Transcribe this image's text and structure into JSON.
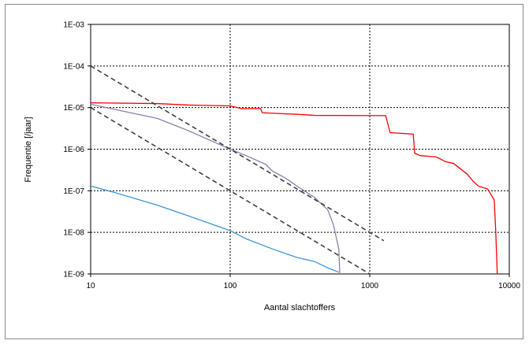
{
  "chart_data": {
    "type": "line",
    "title": "",
    "xlabel": "Aantal slachtoffers",
    "ylabel": "Frequentie [/jaar]",
    "x_scale": "log",
    "y_scale": "log",
    "xlim": [
      10,
      10000
    ],
    "ylim": [
      1e-09,
      0.001
    ],
    "x_ticks": [
      10,
      100,
      1000,
      10000
    ],
    "x_tick_labels": [
      "10",
      "100",
      "1000",
      "10000"
    ],
    "y_ticks": [
      0.001,
      0.0001,
      1e-05,
      1e-06,
      1e-07,
      1e-08,
      1e-09
    ],
    "y_tick_labels": [
      "1E-03",
      "1E-04",
      "1E-05",
      "1E-06",
      "1E-07",
      "1E-08",
      "1E-09"
    ],
    "grid": true,
    "legend": "none",
    "series": [
      {
        "color": "#ff0000",
        "style": "solid",
        "points": [
          [
            10,
            1.3e-05
          ],
          [
            30,
            1.25e-05
          ],
          [
            50,
            1.15e-05
          ],
          [
            100,
            1.1e-05
          ],
          [
            120,
            9.5e-06
          ],
          [
            165,
            9.5e-06
          ],
          [
            170,
            7.5e-06
          ],
          [
            300,
            6.9e-06
          ],
          [
            400,
            6.5e-06
          ],
          [
            1300,
            6.4e-06
          ],
          [
            1400,
            2.5e-06
          ],
          [
            2050,
            2.3e-06
          ],
          [
            2100,
            8e-07
          ],
          [
            2300,
            7e-07
          ],
          [
            3000,
            6.5e-07
          ],
          [
            3500,
            5e-07
          ],
          [
            4000,
            4.5e-07
          ],
          [
            5000,
            2.5e-07
          ],
          [
            5500,
            1.7e-07
          ],
          [
            6000,
            1.3e-07
          ],
          [
            7000,
            1.1e-07
          ],
          [
            7800,
            6e-08
          ],
          [
            8000,
            1e-08
          ],
          [
            8200,
            1e-09
          ]
        ]
      },
      {
        "color": "#9080b0",
        "style": "solid",
        "points": [
          [
            10,
            1.2e-05
          ],
          [
            30,
            5.5e-06
          ],
          [
            50,
            2.8e-06
          ],
          [
            100,
            1e-06
          ],
          [
            130,
            7e-07
          ],
          [
            180,
            4.3e-07
          ],
          [
            200,
            3e-07
          ],
          [
            250,
            2e-07
          ],
          [
            300,
            1.3e-07
          ],
          [
            400,
            7e-08
          ],
          [
            500,
            3.5e-08
          ],
          [
            550,
            1.5e-08
          ],
          [
            600,
            4e-09
          ],
          [
            610,
            1e-09
          ]
        ]
      },
      {
        "color": "#3c96d2",
        "style": "solid",
        "points": [
          [
            10,
            1.3e-07
          ],
          [
            15,
            9e-08
          ],
          [
            30,
            4.5e-08
          ],
          [
            50,
            2.5e-08
          ],
          [
            100,
            1.1e-08
          ],
          [
            130,
            7e-09
          ],
          [
            200,
            4e-09
          ],
          [
            300,
            2.5e-09
          ],
          [
            400,
            2e-09
          ],
          [
            500,
            1.4e-09
          ],
          [
            600,
            1.1e-09
          ]
        ]
      },
      {
        "color": "#404040",
        "style": "dashed",
        "points": [
          [
            10,
            0.0001
          ],
          [
            1000,
            1e-08
          ],
          [
            1260,
            6.3e-09
          ]
        ]
      },
      {
        "color": "#404040",
        "style": "dashed",
        "points": [
          [
            10,
            1e-05
          ],
          [
            3160,
            1e-10
          ]
        ]
      }
    ]
  }
}
